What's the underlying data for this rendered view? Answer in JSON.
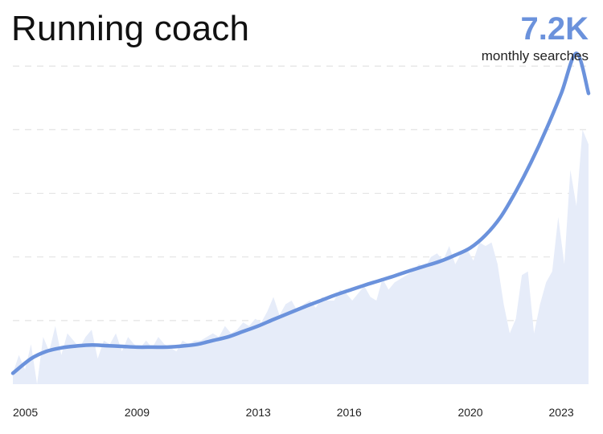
{
  "header": {
    "title": "Running coach",
    "metric_value": "7.2K",
    "metric_label": "monthly searches"
  },
  "colors": {
    "accent": "#6b92dc",
    "area_fill": "#e6ecf9",
    "grid": "#e3e3e3"
  },
  "chart_data": {
    "type": "area",
    "title": "Running coach",
    "xlabel": "",
    "ylabel": "",
    "grid": true,
    "xlim": [
      2004.9,
      2023.9
    ],
    "ylim": [
      0,
      8.8
    ],
    "x_ticks": [
      2005,
      2009,
      2013,
      2016,
      2020,
      2023
    ],
    "y_gridlines": [
      1.75,
      3.5,
      5.25,
      7.0,
      8.75
    ],
    "series": [
      {
        "style": "area",
        "x": [
          2004.9,
          2005.1,
          2005.3,
          2005.5,
          2005.7,
          2005.9,
          2006.1,
          2006.3,
          2006.5,
          2006.7,
          2006.9,
          2007.1,
          2007.3,
          2007.5,
          2007.7,
          2007.9,
          2008.1,
          2008.3,
          2008.5,
          2008.7,
          2008.9,
          2009.1,
          2009.3,
          2009.5,
          2009.7,
          2009.9,
          2010.1,
          2010.3,
          2010.5,
          2010.7,
          2010.9,
          2011.1,
          2011.3,
          2011.5,
          2011.7,
          2011.9,
          2012.1,
          2012.3,
          2012.5,
          2012.7,
          2012.9,
          2013.1,
          2013.3,
          2013.5,
          2013.7,
          2013.9,
          2014.1,
          2014.3,
          2014.5,
          2014.7,
          2014.9,
          2015.1,
          2015.3,
          2015.5,
          2015.7,
          2015.9,
          2016.1,
          2016.3,
          2016.5,
          2016.7,
          2016.9,
          2017.1,
          2017.3,
          2017.5,
          2017.7,
          2017.9,
          2018.1,
          2018.3,
          2018.5,
          2018.7,
          2018.9,
          2019.1,
          2019.3,
          2019.5,
          2019.7,
          2019.9,
          2020.1,
          2020.3,
          2020.5,
          2020.7,
          2020.9,
          2021.1,
          2021.3,
          2021.5,
          2021.7,
          2021.9,
          2022.1,
          2022.3,
          2022.5,
          2022.7,
          2022.9,
          2023.1,
          2023.3,
          2023.5,
          2023.7,
          2023.9
        ],
        "values": [
          0.3,
          0.8,
          0.4,
          1.1,
          0.0,
          1.3,
          0.9,
          1.6,
          0.8,
          1.4,
          1.2,
          1.0,
          1.3,
          1.5,
          0.7,
          1.2,
          1.1,
          1.4,
          0.9,
          1.3,
          1.1,
          1.0,
          1.2,
          1.0,
          1.3,
          1.1,
          1.0,
          0.9,
          1.2,
          1.1,
          1.2,
          1.2,
          1.3,
          1.4,
          1.3,
          1.6,
          1.4,
          1.5,
          1.7,
          1.6,
          1.8,
          1.7,
          2.0,
          2.4,
          1.9,
          2.2,
          2.3,
          2.0,
          2.2,
          2.3,
          2.1,
          2.4,
          2.3,
          2.3,
          2.6,
          2.5,
          2.3,
          2.5,
          2.7,
          2.4,
          2.3,
          2.9,
          2.6,
          2.8,
          2.9,
          3.0,
          3.1,
          3.3,
          3.2,
          3.5,
          3.6,
          3.4,
          3.8,
          3.3,
          3.6,
          3.7,
          3.4,
          3.9,
          3.8,
          3.9,
          3.3,
          2.2,
          1.4,
          1.8,
          3.0,
          3.1,
          1.4,
          2.2,
          2.8,
          3.1,
          4.6,
          3.3,
          5.9,
          4.9,
          7.0,
          6.6
        ]
      },
      {
        "style": "line",
        "x": [
          2004.9,
          2005.5,
          2006.0,
          2006.5,
          2007.0,
          2007.5,
          2008.0,
          2008.5,
          2009.0,
          2009.5,
          2010.0,
          2010.5,
          2011.0,
          2011.5,
          2012.0,
          2012.5,
          2013.0,
          2013.5,
          2014.0,
          2014.5,
          2015.0,
          2015.5,
          2016.0,
          2016.5,
          2017.0,
          2017.5,
          2018.0,
          2018.5,
          2019.0,
          2019.5,
          2020.0,
          2020.5,
          2021.0,
          2021.5,
          2022.0,
          2022.5,
          2023.0,
          2023.5,
          2023.9
        ],
        "values": [
          0.3,
          0.7,
          0.9,
          1.0,
          1.05,
          1.08,
          1.06,
          1.04,
          1.02,
          1.02,
          1.02,
          1.05,
          1.1,
          1.2,
          1.3,
          1.45,
          1.6,
          1.78,
          1.95,
          2.12,
          2.28,
          2.44,
          2.58,
          2.72,
          2.85,
          2.98,
          3.12,
          3.25,
          3.38,
          3.55,
          3.75,
          4.1,
          4.6,
          5.3,
          6.1,
          7.0,
          8.0,
          9.1,
          8.0
        ]
      }
    ]
  }
}
